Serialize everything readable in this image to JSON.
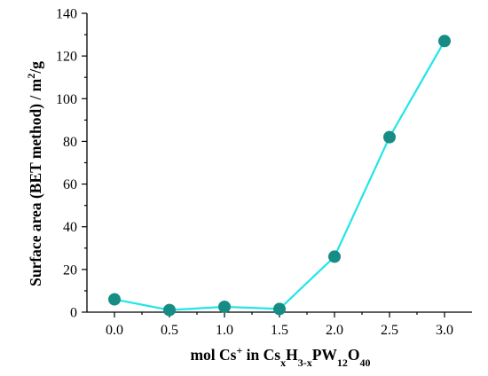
{
  "chart_data": {
    "type": "scatter",
    "title": "",
    "xlabel": "mol Cs+ in CsxH3-xPW12O40",
    "ylabel": "Surface area (BET method) / m2/g",
    "xlim": [
      -0.25,
      3.25
    ],
    "ylim": [
      0,
      140
    ],
    "x_ticks": [
      "0.0",
      "0.5",
      "1.0",
      "1.5",
      "2.0",
      "2.5",
      "3.0"
    ],
    "y_ticks": [
      "0",
      "20",
      "40",
      "60",
      "80",
      "100",
      "120",
      "140"
    ],
    "series": [
      {
        "x": [
          0.0,
          0.5,
          1.0,
          1.5,
          2.0,
          2.5,
          3.0
        ],
        "y": [
          6,
          1,
          2.5,
          1.5,
          26,
          82,
          127
        ],
        "line_color": "#22e5e8",
        "marker_color": "#168c84"
      }
    ],
    "grid": false,
    "legend": "none"
  }
}
